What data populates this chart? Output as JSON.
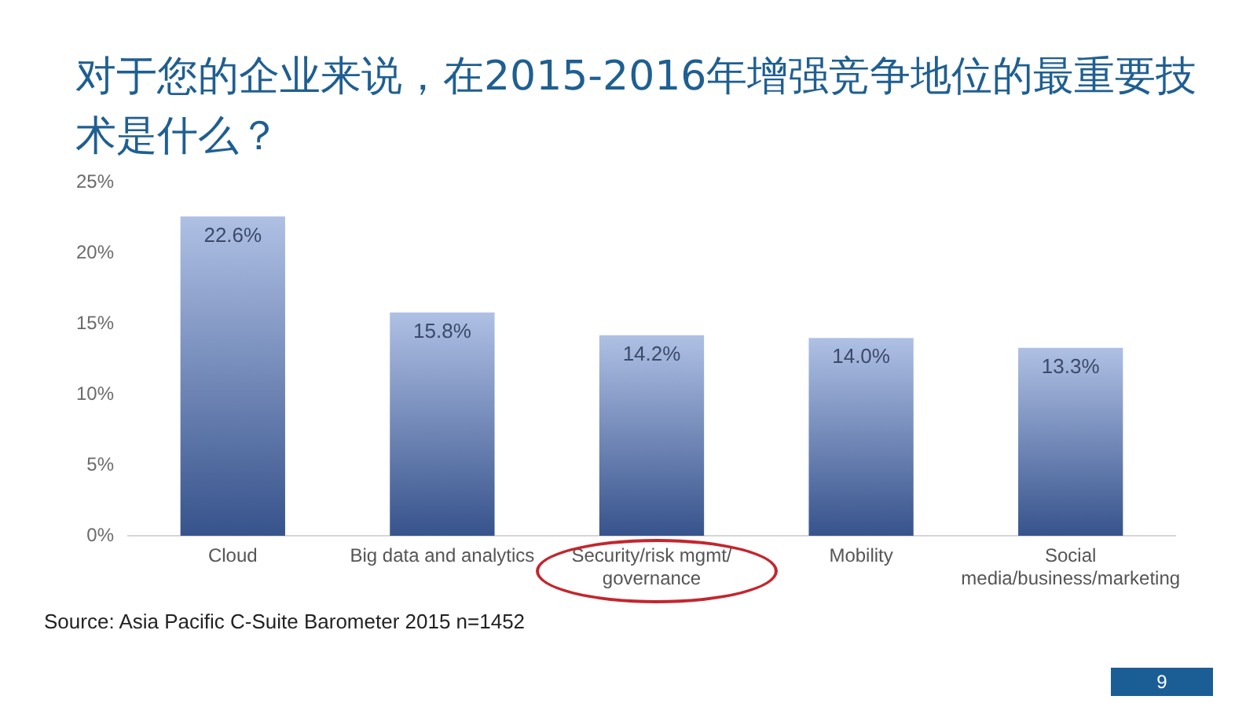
{
  "chart_data": {
    "type": "bar",
    "title": "对于您的企业来说，在2015-2016年增强竞争地位的最重要技术是什么？",
    "categories": [
      "Cloud",
      "Big data and analytics",
      "Security/risk mgmt/\ngovernance",
      "Mobility",
      "Social\nmedia/business/marketing"
    ],
    "values": [
      22.6,
      15.8,
      14.2,
      14.0,
      13.3
    ],
    "value_labels": [
      "22.6%",
      "15.8%",
      "14.2%",
      "14.0%",
      "13.3%"
    ],
    "color": "#4d73c2",
    "ylim": [
      0,
      25
    ],
    "yticks": [
      {
        "value": 0,
        "label": "0%"
      },
      {
        "value": 5,
        "label": "5%"
      },
      {
        "value": 10,
        "label": "10%"
      },
      {
        "value": 15,
        "label": "15%"
      },
      {
        "value": 20,
        "label": "20%"
      },
      {
        "value": 25,
        "label": "25%"
      }
    ],
    "grid": false,
    "legend": false,
    "annotations": [
      "Source: Asia Pacific C-Suite Barometer 2015 n=1452",
      "9"
    ]
  }
}
